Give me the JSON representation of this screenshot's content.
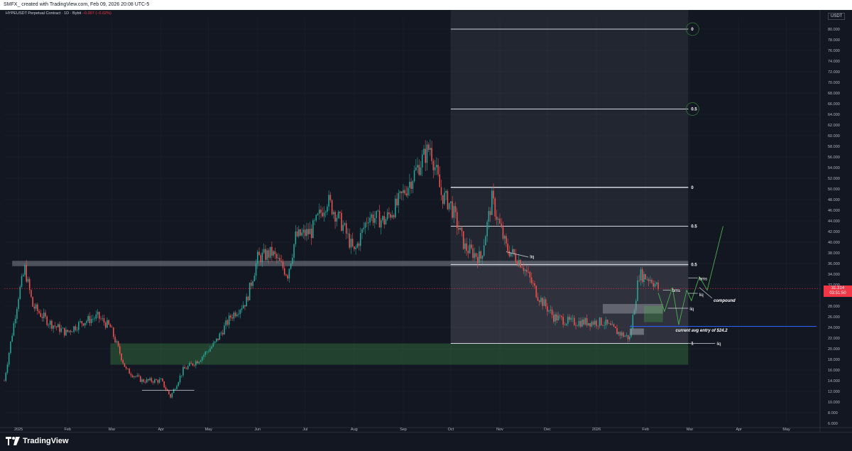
{
  "header": {
    "watermark": "SMFX_ created with TradingView.com, Feb 09, 2026 20:08 UTC-5"
  },
  "instrument": {
    "name": "HYPEUSDT Perpetual Contract · 1D · Bybit",
    "change": "−0.007 (−0.02%)"
  },
  "price_scale": {
    "currency": "USDT",
    "ticks": [
      "80.000",
      "78.000",
      "76.000",
      "74.000",
      "72.000",
      "70.000",
      "68.000",
      "66.000",
      "64.000",
      "62.000",
      "60.000",
      "58.000",
      "56.000",
      "54.000",
      "52.000",
      "50.000",
      "48.000",
      "46.000",
      "44.000",
      "42.000",
      "40.000",
      "38.000",
      "36.000",
      "34.000",
      "32.000",
      "30.000",
      "28.000",
      "26.000",
      "24.000",
      "22.000",
      "20.000",
      "18.000",
      "16.000",
      "14.000",
      "12.000",
      "10.000",
      "8.000",
      "6.000"
    ],
    "current_price": "31.314",
    "countdown": "03:51:50"
  },
  "time_axis": {
    "labels": [
      "2025",
      "Feb",
      "Mar",
      "Apr",
      "May",
      "Jun",
      "Jul",
      "Aug",
      "Sep",
      "Oct",
      "Nov",
      "Dec",
      "2026",
      "Feb",
      "Mar",
      "Apr",
      "May"
    ]
  },
  "fib_labels": {
    "top": "0",
    "mid_upper": "0.5",
    "upper": "0",
    "middle": "0.5",
    "lower": "0.5",
    "bottom": "1"
  },
  "annotations": {
    "liq_1": "liq",
    "bms_1": "bms",
    "bms_2": "bms",
    "liq_2": "liq",
    "liq_3": "liq",
    "liq_4": "liq",
    "compound": "compound",
    "avg_entry": "current avg entry of $24.2"
  },
  "footer": {
    "brand": "TradingView"
  },
  "colors": {
    "background": "#131722",
    "bull": "#26a69a",
    "bear": "#ef5350",
    "zone_green": "#2e5b3a",
    "fib_zone": "#787b86",
    "current_price": "#f23645",
    "avg_line": "#2962ff",
    "projection": "#4caf50"
  },
  "chart_data": {
    "type": "candlestick",
    "x_range": [
      "2024-12-23",
      "2026-05-20"
    ],
    "y_range": [
      6,
      82
    ],
    "key_levels": {
      "resistance_band": [
        35.5,
        36.5
      ],
      "support_zone": [
        17,
        21
      ],
      "upper_fib_zone": [
        21,
        82
      ],
      "avg_entry": 24.2
    },
    "fib_levels": [
      {
        "label": "0",
        "price": 80
      },
      {
        "label": "0.5",
        "price": 65
      },
      {
        "label": "0",
        "price": 50.3
      },
      {
        "label": "0.5",
        "price": 43
      },
      {
        "label": "0.5",
        "price": 35.8
      },
      {
        "label": "1",
        "price": 21
      }
    ],
    "closes": [
      [
        2024,
        12,
        23,
        14
      ],
      [
        2025,
        1,
        1,
        30
      ],
      [
        2025,
        1,
        5,
        35
      ],
      [
        2025,
        1,
        10,
        28
      ],
      [
        2025,
        1,
        20,
        25
      ],
      [
        2025,
        1,
        31,
        23
      ],
      [
        2025,
        2,
        10,
        25
      ],
      [
        2025,
        2,
        20,
        26
      ],
      [
        2025,
        2,
        28,
        24
      ],
      [
        2025,
        3,
        10,
        16
      ],
      [
        2025,
        3,
        20,
        14
      ],
      [
        2025,
        4,
        1,
        14
      ],
      [
        2025,
        4,
        7,
        11
      ],
      [
        2025,
        4,
        15,
        16
      ],
      [
        2025,
        4,
        25,
        18
      ],
      [
        2025,
        5,
        5,
        21
      ],
      [
        2025,
        5,
        15,
        26
      ],
      [
        2025,
        5,
        25,
        29
      ],
      [
        2025,
        6,
        1,
        37
      ],
      [
        2025,
        6,
        10,
        38
      ],
      [
        2025,
        6,
        20,
        34
      ],
      [
        2025,
        6,
        25,
        41
      ],
      [
        2025,
        7,
        5,
        42
      ],
      [
        2025,
        7,
        15,
        48
      ],
      [
        2025,
        7,
        25,
        43
      ],
      [
        2025,
        8,
        1,
        38
      ],
      [
        2025,
        8,
        10,
        45
      ],
      [
        2025,
        8,
        20,
        44
      ],
      [
        2025,
        8,
        28,
        47
      ],
      [
        2025,
        9,
        10,
        54
      ],
      [
        2025,
        9,
        18,
        58
      ],
      [
        2025,
        9,
        25,
        49
      ],
      [
        2025,
        10,
        1,
        47
      ],
      [
        2025,
        10,
        10,
        39
      ],
      [
        2025,
        10,
        20,
        37
      ],
      [
        2025,
        10,
        27,
        48
      ],
      [
        2025,
        11,
        5,
        39
      ],
      [
        2025,
        11,
        15,
        36
      ],
      [
        2025,
        11,
        25,
        30
      ],
      [
        2025,
        12,
        5,
        26
      ],
      [
        2025,
        12,
        15,
        25
      ],
      [
        2025,
        12,
        25,
        25
      ],
      [
        2026,
        1,
        5,
        25
      ],
      [
        2026,
        1,
        15,
        23
      ],
      [
        2026,
        1,
        22,
        22
      ],
      [
        2026,
        1,
        28,
        34
      ],
      [
        2026,
        2,
        5,
        33
      ],
      [
        2026,
        2,
        9,
        31.3
      ]
    ]
  }
}
